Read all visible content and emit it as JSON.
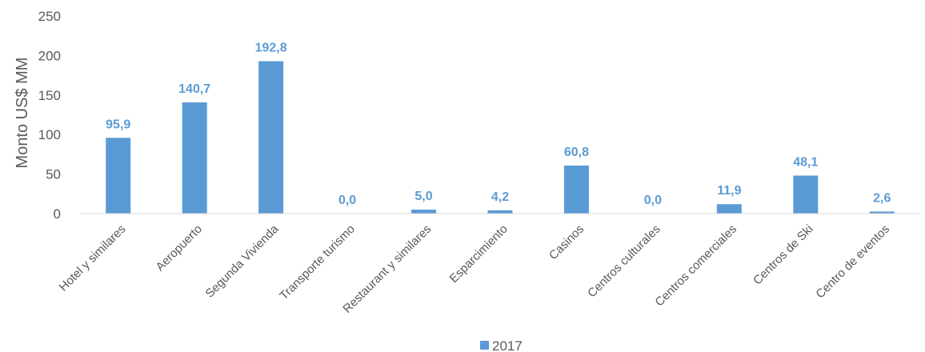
{
  "chart_data": {
    "type": "bar",
    "title": "",
    "xlabel": "",
    "ylabel": "Monto US$ MM",
    "ylim": [
      0,
      250
    ],
    "yticks": [
      0,
      50,
      100,
      150,
      200,
      250
    ],
    "ytick_labels": [
      "0",
      "50",
      "100",
      "150",
      "200",
      "250"
    ],
    "grid": false,
    "legend_position": "bottom",
    "bar_color": "#5b9bd5",
    "label_color": "#5b9bd5",
    "categories": [
      "Hotel y similares",
      "Aeropuerto",
      "Segunda Vivienda",
      "Transporte turismo",
      "Restaurant y similares",
      "Esparcimiento",
      "Casinos",
      "Centros culturales",
      "Centros comerciales",
      "Centros de Ski",
      "Centro de eventos"
    ],
    "series": [
      {
        "name": "2017",
        "values": [
          95.9,
          140.7,
          192.8,
          0.0,
          5.0,
          4.2,
          60.8,
          0.0,
          11.9,
          48.1,
          2.6
        ],
        "data_labels": [
          "95,9",
          "140,7",
          "192,8",
          "0,0",
          "5,0",
          "4,2",
          "60,8",
          "0,0",
          "11,9",
          "48,1",
          "2,6"
        ]
      }
    ]
  }
}
